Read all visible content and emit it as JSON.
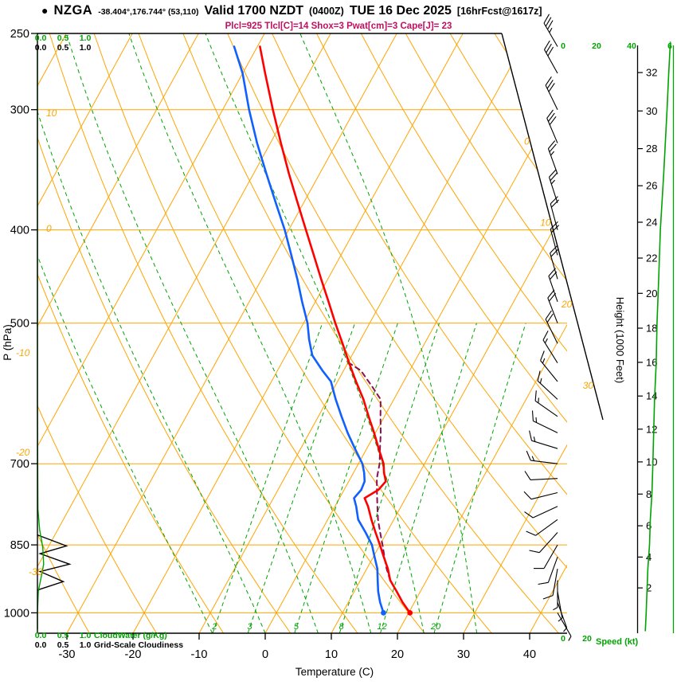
{
  "header": {
    "bullet": "●",
    "station": "NZGA",
    "coords": "-38.404°,176.744° (53,110)",
    "valid": "Valid 1700 NZDT",
    "valid_z": "(0400Z)",
    "date": "TUE 16 Dec 2025",
    "fcst_tag": "[16hrFcst@1617z]",
    "params_line": "Plcl=925 Tlcl[C]=14 Shox=3 Pwat[cm]=3 Cape[J]= 23"
  },
  "axes": {
    "pressure_title": "P (hPa)",
    "pressure_ticks": [
      250,
      300,
      400,
      500,
      700,
      850,
      1000
    ],
    "temp_title": "Temperature (C)",
    "temp_ticks": [
      -30,
      -20,
      -10,
      0,
      10,
      20,
      30,
      40
    ],
    "height_title": "Height (1000 Feet)",
    "height_ticks": [
      2,
      4,
      6,
      8,
      10,
      12,
      14,
      16,
      18,
      20,
      22,
      24,
      26,
      28,
      30,
      32
    ],
    "speed_title": "Speed (kt)",
    "speed_ticks_top": [
      "0",
      "20",
      "40",
      "6"
    ],
    "speed_ticks_bottom": [
      "0",
      "20"
    ],
    "isotherm_labels": [
      "0",
      "10",
      "20",
      "30"
    ],
    "adiabat_labels": [
      "10",
      "0",
      "-10",
      "-20",
      "-30"
    ],
    "cloudwater_scale": [
      "0.0",
      "0.5",
      "1.0"
    ],
    "cloudwater_title": "CloudWater (g/Kg)",
    "cloudiness_scale": [
      "0.0",
      "0.5",
      "1.0"
    ],
    "cloudiness_title": "Grid-Scale Cloudiness"
  },
  "colors": {
    "grid": "#ffa400",
    "green": "#00a400",
    "temp": "#ff0000",
    "dewpoint": "#1060ff",
    "parcel": "#8a1050",
    "barb": "#000000",
    "params": "#c01060"
  },
  "chart_data": {
    "type": "skewt",
    "pressure_range_hpa": [
      250,
      1050
    ],
    "temp_axis_range_c": [
      -35,
      45
    ],
    "indices": {
      "Plcl": 925,
      "Tlcl_C": 14,
      "Shox": 3,
      "Pwat_cm": 3,
      "Cape_J": 23
    },
    "mixing_ratio_lines_gkg": [
      2,
      3,
      5,
      8,
      12,
      20
    ],
    "temperature_profile": [
      [
        1000,
        20.2
      ],
      [
        975,
        18.2
      ],
      [
        950,
        16.4
      ],
      [
        925,
        14.5
      ],
      [
        900,
        13.2
      ],
      [
        875,
        11.6
      ],
      [
        850,
        10.0
      ],
      [
        825,
        8.3
      ],
      [
        800,
        6.6
      ],
      [
        775,
        5.0
      ],
      [
        760,
        3.8
      ],
      [
        745,
        5.2
      ],
      [
        730,
        5.6
      ],
      [
        715,
        4.6
      ],
      [
        700,
        3.8
      ],
      [
        675,
        1.8
      ],
      [
        650,
        -0.2
      ],
      [
        625,
        -2.4
      ],
      [
        600,
        -4.6
      ],
      [
        575,
        -7.2
      ],
      [
        550,
        -9.8
      ],
      [
        525,
        -12.4
      ],
      [
        500,
        -15.2
      ],
      [
        475,
        -18.0
      ],
      [
        450,
        -21.0
      ],
      [
        425,
        -24.1
      ],
      [
        400,
        -27.4
      ],
      [
        375,
        -30.9
      ],
      [
        350,
        -34.6
      ],
      [
        325,
        -38.4
      ],
      [
        300,
        -42.4
      ],
      [
        275,
        -46.6
      ],
      [
        258,
        -49.6
      ]
    ],
    "dewpoint_profile": [
      [
        1000,
        16.2
      ],
      [
        975,
        14.8
      ],
      [
        950,
        13.6
      ],
      [
        925,
        12.6
      ],
      [
        900,
        11.6
      ],
      [
        875,
        10.2
      ],
      [
        850,
        8.8
      ],
      [
        825,
        6.8
      ],
      [
        800,
        4.6
      ],
      [
        775,
        3.2
      ],
      [
        760,
        2.2
      ],
      [
        745,
        2.6
      ],
      [
        730,
        2.4
      ],
      [
        715,
        1.6
      ],
      [
        700,
        0.6
      ],
      [
        675,
        -1.8
      ],
      [
        650,
        -4.2
      ],
      [
        625,
        -6.5
      ],
      [
        600,
        -8.8
      ],
      [
        575,
        -11.0
      ],
      [
        560,
        -13.2
      ],
      [
        540,
        -16.0
      ],
      [
        520,
        -17.8
      ],
      [
        500,
        -19.4
      ],
      [
        475,
        -22.0
      ],
      [
        450,
        -24.6
      ],
      [
        425,
        -27.5
      ],
      [
        400,
        -30.6
      ],
      [
        375,
        -34.2
      ],
      [
        350,
        -38.0
      ],
      [
        325,
        -42.0
      ],
      [
        300,
        -46.0
      ],
      [
        275,
        -50.0
      ],
      [
        258,
        -53.5
      ]
    ],
    "parcel_profile": [
      [
        925,
        14.5
      ],
      [
        900,
        13.0
      ],
      [
        875,
        11.7
      ],
      [
        850,
        10.4
      ],
      [
        825,
        9.0
      ],
      [
        800,
        7.6
      ],
      [
        775,
        6.4
      ],
      [
        750,
        5.2
      ],
      [
        725,
        4.0
      ],
      [
        700,
        3.2
      ],
      [
        675,
        2.0
      ],
      [
        650,
        0.8
      ],
      [
        625,
        -0.6
      ],
      [
        600,
        -2.0
      ],
      [
        580,
        -4.6
      ],
      [
        560,
        -7.4
      ],
      [
        550,
        -9.8
      ]
    ],
    "wind_barbs_p_dir_kt": [
      [
        1000,
        150,
        5
      ],
      [
        975,
        160,
        5
      ],
      [
        950,
        170,
        6
      ],
      [
        925,
        180,
        7
      ],
      [
        900,
        190,
        8
      ],
      [
        875,
        200,
        8
      ],
      [
        850,
        210,
        9
      ],
      [
        825,
        222,
        10
      ],
      [
        800,
        234,
        10
      ],
      [
        775,
        245,
        11
      ],
      [
        750,
        256,
        12
      ],
      [
        725,
        267,
        12
      ],
      [
        700,
        277,
        13
      ],
      [
        675,
        287,
        13
      ],
      [
        650,
        296,
        14
      ],
      [
        625,
        305,
        15
      ],
      [
        600,
        313,
        15
      ],
      [
        575,
        321,
        16
      ],
      [
        550,
        328,
        17
      ],
      [
        525,
        334,
        18
      ],
      [
        500,
        339,
        18
      ],
      [
        475,
        341,
        19
      ],
      [
        450,
        344,
        20
      ],
      [
        425,
        345,
        21
      ],
      [
        400,
        345,
        22
      ],
      [
        375,
        342,
        24
      ],
      [
        350,
        340,
        26
      ],
      [
        325,
        337,
        28
      ],
      [
        300,
        334,
        30
      ],
      [
        275,
        331,
        32
      ],
      [
        258,
        330,
        34
      ]
    ],
    "wind_speed_profile_kt": [
      [
        1045,
        4
      ],
      [
        1000,
        5
      ],
      [
        950,
        6
      ],
      [
        900,
        7
      ],
      [
        850,
        9
      ],
      [
        800,
        10
      ],
      [
        750,
        12
      ],
      [
        700,
        13
      ],
      [
        650,
        14
      ],
      [
        600,
        15
      ],
      [
        550,
        17
      ],
      [
        500,
        18
      ],
      [
        450,
        20
      ],
      [
        400,
        22
      ],
      [
        350,
        26
      ],
      [
        300,
        30
      ],
      [
        275,
        32
      ],
      [
        255,
        34
      ]
    ],
    "cloudiness_profile": [
      [
        830,
        0
      ],
      [
        852,
        0.65
      ],
      [
        868,
        0.06
      ],
      [
        890,
        0.72
      ],
      [
        906,
        0.06
      ],
      [
        928,
        0.58
      ],
      [
        947,
        0
      ]
    ],
    "cloudwater_profile_gkg": [
      [
        260,
        0
      ],
      [
        600,
        0
      ],
      [
        780,
        0.01
      ],
      [
        820,
        0.05
      ],
      [
        855,
        0.12
      ],
      [
        890,
        0.14
      ],
      [
        920,
        0.08
      ],
      [
        950,
        0.02
      ],
      [
        1000,
        0
      ],
      [
        1040,
        0
      ]
    ]
  }
}
